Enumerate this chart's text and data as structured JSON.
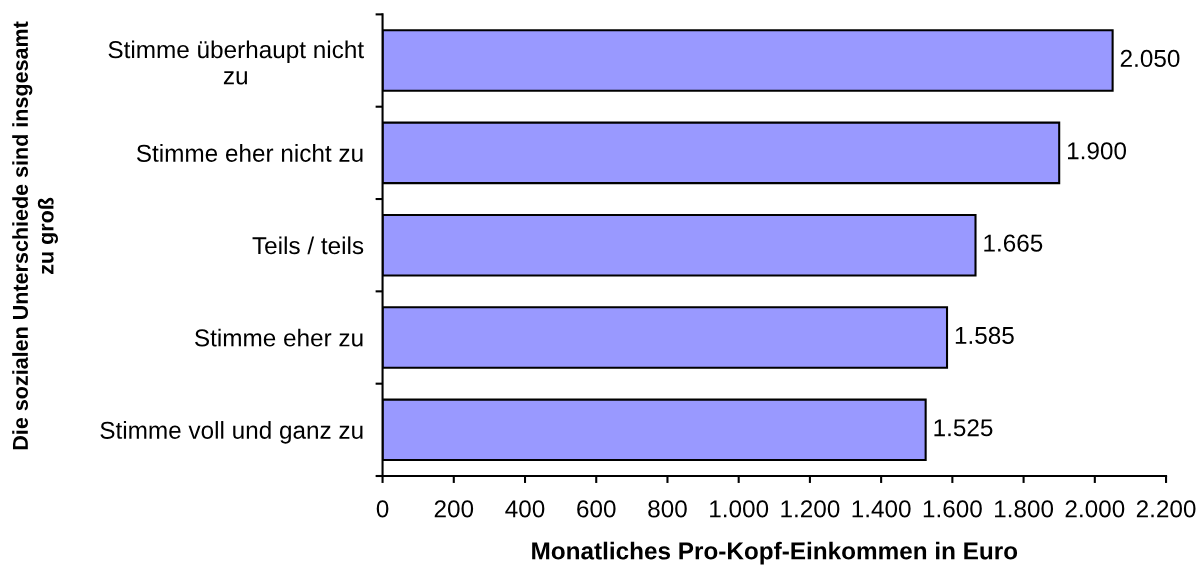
{
  "chart_data": {
    "type": "bar",
    "orientation": "horizontal",
    "ylabel": "Die sozialen Unterschiede sind insgesamt\nzu groß",
    "xlabel": "Monatliches Pro-Kopf-Einkommen in Euro",
    "categories": [
      "Stimme überhaupt nicht\nzu",
      "Stimme eher nicht zu",
      "Teils / teils",
      "Stimme eher zu",
      "Stimme voll und ganz zu"
    ],
    "values": [
      2050,
      1900,
      1665,
      1585,
      1525
    ],
    "value_labels": [
      "2.050",
      "1.900",
      "1.665",
      "1.585",
      "1.525"
    ],
    "color": "#9999ff",
    "xlim": [
      0,
      2200
    ],
    "xticks": [
      0,
      200,
      400,
      600,
      800,
      {
        "value": 1000,
        "label": "1.000"
      },
      {
        "value": 1200,
        "label": "1.200"
      },
      {
        "value": 1400,
        "label": "1.400"
      },
      {
        "value": 1600,
        "label": "1.600"
      },
      {
        "value": 1800,
        "label": "1.800"
      },
      {
        "value": 2000,
        "label": "2.000"
      },
      {
        "value": 2200,
        "label": "2.200"
      }
    ]
  }
}
